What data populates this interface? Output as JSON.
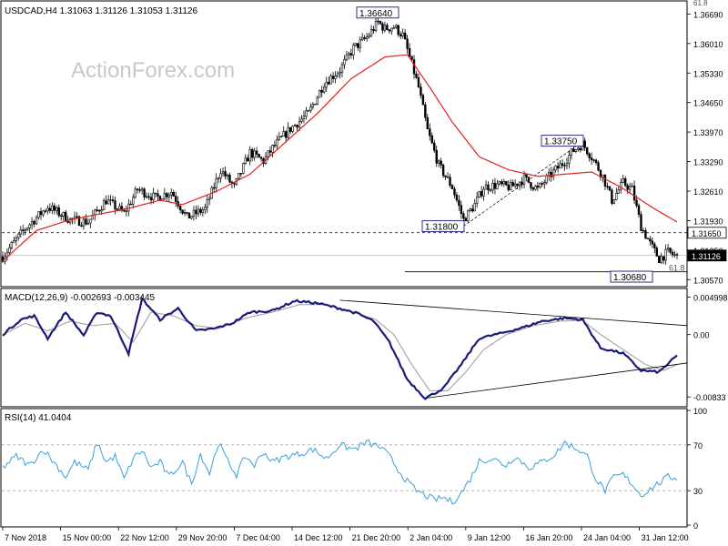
{
  "header": {
    "symbol_line": "USDCAD,H4  1.31063 1.31126 1.31053 1.31126",
    "corner_label": "61.8"
  },
  "watermark": "ActionForex.com",
  "colors": {
    "candle": "#000000",
    "ema": "#dd2222",
    "macd": "#1a1a7a",
    "signal": "#9a9a9a",
    "trend": "#000000",
    "annotation_box": "#1a1a7a",
    "price_box": "#000000",
    "grid_dash": "#000000"
  },
  "chart_data": [
    {
      "type": "candlestick",
      "title": "USDCAD,H4",
      "ohlc_header": [
        1.31063,
        1.31126,
        1.31053,
        1.31126
      ],
      "ylim": [
        1.3045,
        1.3695
      ],
      "y_ticks": [
        1.3669,
        1.3601,
        1.3533,
        1.3465,
        1.3397,
        1.3329,
        1.3261,
        1.3193,
        1.3125,
        1.3057
      ],
      "y_tick_labels": [
        "1.36690",
        "1.36010",
        "1.35330",
        "1.34650",
        "1.33970",
        "1.33290",
        "1.32610",
        "1.31930",
        "1.31250",
        "1.30570"
      ],
      "x_labels": [
        "7 Nov 2018",
        "15 Nov 00:00",
        "22 Nov 12:00",
        "29 Nov 20:00",
        "7 Dec 04:00",
        "14 Dec 12:00",
        "21 Dec 20:00",
        "2 Jan 04:00",
        "9 Jan 12:00",
        "16 Jan 20:00",
        "24 Jan 04:00",
        "31 Jan 12:00"
      ],
      "anchors": [
        [
          0,
          1.311
        ],
        [
          10,
          1.3175
        ],
        [
          20,
          1.3225
        ],
        [
          30,
          1.3195
        ],
        [
          38,
          1.319
        ],
        [
          46,
          1.324
        ],
        [
          54,
          1.321
        ],
        [
          60,
          1.3265
        ],
        [
          68,
          1.3245
        ],
        [
          75,
          1.326
        ],
        [
          82,
          1.32
        ],
        [
          90,
          1.322
        ],
        [
          97,
          1.331
        ],
        [
          103,
          1.327
        ],
        [
          110,
          1.335
        ],
        [
          116,
          1.333
        ],
        [
          120,
          1.336
        ],
        [
          128,
          1.3405
        ],
        [
          136,
          1.344
        ],
        [
          143,
          1.351
        ],
        [
          150,
          1.354
        ],
        [
          156,
          1.359
        ],
        [
          162,
          1.3615
        ],
        [
          167,
          1.365
        ],
        [
          170,
          1.3635
        ],
        [
          174,
          1.364
        ],
        [
          178,
          1.362
        ],
        [
          181,
          1.357
        ],
        [
          185,
          1.35
        ],
        [
          189,
          1.34
        ],
        [
          194,
          1.332
        ],
        [
          200,
          1.327
        ],
        [
          205,
          1.3195
        ],
        [
          210,
          1.323
        ],
        [
          214,
          1.327
        ],
        [
          220,
          1.3275
        ],
        [
          226,
          1.327
        ],
        [
          232,
          1.329
        ],
        [
          238,
          1.3265
        ],
        [
          244,
          1.33
        ],
        [
          250,
          1.333
        ],
        [
          254,
          1.3355
        ],
        [
          258,
          1.337
        ],
        [
          262,
          1.334
        ],
        [
          267,
          1.3295
        ],
        [
          271,
          1.324
        ],
        [
          276,
          1.328
        ],
        [
          280,
          1.3265
        ],
        [
          284,
          1.318
        ],
        [
          288,
          1.314
        ],
        [
          292,
          1.3105
        ],
        [
          296,
          1.312
        ],
        [
          300,
          1.311
        ]
      ],
      "ema_anchors": [
        [
          0,
          1.31
        ],
        [
          15,
          1.317
        ],
        [
          30,
          1.3195
        ],
        [
          45,
          1.321
        ],
        [
          55,
          1.322
        ],
        [
          70,
          1.324
        ],
        [
          80,
          1.323
        ],
        [
          95,
          1.326
        ],
        [
          110,
          1.33
        ],
        [
          125,
          1.337
        ],
        [
          140,
          1.344
        ],
        [
          155,
          1.352
        ],
        [
          170,
          1.357
        ],
        [
          180,
          1.3575
        ],
        [
          190,
          1.35
        ],
        [
          200,
          1.342
        ],
        [
          212,
          1.334
        ],
        [
          225,
          1.331
        ],
        [
          238,
          1.3295
        ],
        [
          250,
          1.33
        ],
        [
          262,
          1.3305
        ],
        [
          275,
          1.327
        ],
        [
          290,
          1.322
        ],
        [
          300,
          1.319
        ]
      ],
      "annotations": [
        {
          "label": "1.36640",
          "value": 1.3664
        },
        {
          "label": "1.33750",
          "value": 1.3375
        },
        {
          "label": "1.31800",
          "value": 1.318
        },
        {
          "label": "1.30680",
          "value": 1.3068
        },
        {
          "label": "1.31650",
          "value": 1.3165
        },
        {
          "label": "1.31126",
          "value": 1.31126
        },
        {
          "label": "61.8",
          "value": 1.3075
        }
      ],
      "fib_dashed_level": 1.3165,
      "fib_solid_level": 1.3075
    },
    {
      "type": "line",
      "title": "MACD(12,26,9) -0.002693 -0.003445",
      "ylim": [
        -0.0094,
        0.0058
      ],
      "y_ticks": [
        0.004998,
        0.0,
        -0.00833
      ],
      "y_tick_labels": [
        "0.004998",
        "0.00",
        "-0.00833"
      ],
      "series": [
        {
          "name": "MACD",
          "anchors": [
            [
              0,
              0.0
            ],
            [
              8,
              0.002
            ],
            [
              14,
              0.0025
            ],
            [
              20,
              -0.0005
            ],
            [
              28,
              0.003
            ],
            [
              36,
              -0.0001
            ],
            [
              42,
              0.003
            ],
            [
              48,
              0.0025
            ],
            [
              56,
              -0.0025
            ],
            [
              62,
              0.0048
            ],
            [
              70,
              0.002
            ],
            [
              78,
              0.0035
            ],
            [
              86,
              0.0005
            ],
            [
              94,
              0.0008
            ],
            [
              102,
              0.0015
            ],
            [
              110,
              0.003
            ],
            [
              120,
              0.0032
            ],
            [
              130,
              0.0045
            ],
            [
              140,
              0.0042
            ],
            [
              150,
              0.0035
            ],
            [
              158,
              0.0028
            ],
            [
              165,
              0.0018
            ],
            [
              172,
              -0.001
            ],
            [
              180,
              -0.006
            ],
            [
              188,
              -0.0085
            ],
            [
              196,
              -0.0072
            ],
            [
              204,
              -0.004
            ],
            [
              212,
              -0.0005
            ],
            [
              222,
              0.0002
            ],
            [
              232,
              0.001
            ],
            [
              240,
              0.0018
            ],
            [
              250,
              0.0022
            ],
            [
              258,
              0.002
            ],
            [
              266,
              -0.0018
            ],
            [
              276,
              -0.0025
            ],
            [
              284,
              -0.0048
            ],
            [
              292,
              -0.005
            ],
            [
              300,
              -0.0028
            ]
          ]
        },
        {
          "name": "Signal",
          "anchors": [
            [
              0,
              0.0
            ],
            [
              10,
              0.0015
            ],
            [
              20,
              0.0005
            ],
            [
              30,
              0.0018
            ],
            [
              40,
              0.0012
            ],
            [
              50,
              0.0015
            ],
            [
              58,
              -0.001
            ],
            [
              66,
              0.003
            ],
            [
              76,
              0.0025
            ],
            [
              86,
              0.0012
            ],
            [
              96,
              0.0008
            ],
            [
              108,
              0.0022
            ],
            [
              120,
              0.003
            ],
            [
              132,
              0.004
            ],
            [
              144,
              0.004
            ],
            [
              156,
              0.003
            ],
            [
              166,
              0.002
            ],
            [
              174,
              0.0
            ],
            [
              182,
              -0.004
            ],
            [
              190,
              -0.0075
            ],
            [
              198,
              -0.0075
            ],
            [
              206,
              -0.005
            ],
            [
              214,
              -0.002
            ],
            [
              224,
              0.0
            ],
            [
              236,
              0.0012
            ],
            [
              248,
              0.0018
            ],
            [
              258,
              0.0019
            ],
            [
              266,
              0.0
            ],
            [
              276,
              -0.002
            ],
            [
              286,
              -0.004
            ],
            [
              294,
              -0.0048
            ],
            [
              300,
              -0.004
            ]
          ]
        }
      ],
      "trendlines": [
        {
          "x1": 150,
          "y1": 0.0046,
          "x2": 300,
          "y2": 0.0012
        },
        {
          "x1": 188,
          "y1": -0.0085,
          "x2": 300,
          "y2": -0.0038
        }
      ]
    },
    {
      "type": "line",
      "title": "RSI(14) 41.0404",
      "ylim": [
        0,
        100
      ],
      "y_ticks": [
        100,
        70,
        30,
        0
      ],
      "y_tick_labels": [
        "100",
        "70",
        "30",
        "0"
      ],
      "series": [
        {
          "name": "RSI(14)",
          "anchors": [
            [
              0,
              50
            ],
            [
              6,
              60
            ],
            [
              12,
              52
            ],
            [
              18,
              66
            ],
            [
              24,
              52
            ],
            [
              28,
              42
            ],
            [
              32,
              55
            ],
            [
              38,
              48
            ],
            [
              42,
              72
            ],
            [
              46,
              55
            ],
            [
              50,
              60
            ],
            [
              54,
              40
            ],
            [
              58,
              58
            ],
            [
              62,
              65
            ],
            [
              66,
              50
            ],
            [
              70,
              55
            ],
            [
              74,
              42
            ],
            [
              80,
              55
            ],
            [
              84,
              36
            ],
            [
              88,
              62
            ],
            [
              92,
              45
            ],
            [
              96,
              72
            ],
            [
              100,
              56
            ],
            [
              104,
              44
            ],
            [
              108,
              60
            ],
            [
              112,
              52
            ],
            [
              116,
              64
            ],
            [
              120,
              55
            ],
            [
              126,
              60
            ],
            [
              132,
              62
            ],
            [
              138,
              66
            ],
            [
              144,
              58
            ],
            [
              150,
              70
            ],
            [
              156,
              66
            ],
            [
              162,
              72
            ],
            [
              168,
              68
            ],
            [
              172,
              60
            ],
            [
              176,
              48
            ],
            [
              180,
              38
            ],
            [
              184,
              30
            ],
            [
              188,
              26
            ],
            [
              192,
              22
            ],
            [
              196,
              24
            ],
            [
              200,
              20
            ],
            [
              204,
              28
            ],
            [
              208,
              40
            ],
            [
              212,
              56
            ],
            [
              218,
              58
            ],
            [
              224,
              52
            ],
            [
              228,
              60
            ],
            [
              234,
              50
            ],
            [
              240,
              55
            ],
            [
              246,
              62
            ],
            [
              250,
              72
            ],
            [
              256,
              66
            ],
            [
              260,
              60
            ],
            [
              264,
              40
            ],
            [
              268,
              30
            ],
            [
              272,
              42
            ],
            [
              276,
              44
            ],
            [
              280,
              36
            ],
            [
              284,
              26
            ],
            [
              290,
              34
            ],
            [
              296,
              42
            ],
            [
              300,
              41
            ]
          ]
        }
      ],
      "levels": [
        70,
        30
      ]
    }
  ]
}
